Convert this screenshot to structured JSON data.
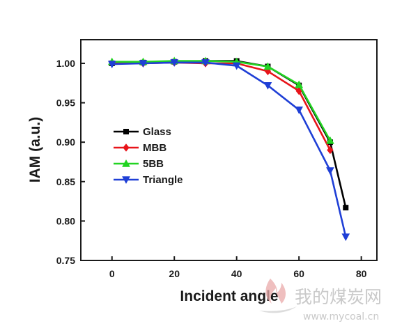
{
  "chart_data": {
    "type": "line",
    "title": "",
    "xlabel": "Incident angle",
    "ylabel": "IAM (a.u.)",
    "xlim": [
      -10,
      85
    ],
    "ylim": [
      0.75,
      1.03
    ],
    "x_ticks": [
      0,
      20,
      40,
      60,
      80
    ],
    "y_ticks": [
      0.75,
      0.8,
      0.85,
      0.9,
      0.95,
      1.0
    ],
    "x_tick_labels": [
      "0",
      "20",
      "40",
      "60",
      "80"
    ],
    "y_tick_labels": [
      "0.75",
      "0.80",
      "0.85",
      "0.90",
      "0.95",
      "1.00"
    ],
    "grid": false,
    "legend_position": "center-left",
    "series": [
      {
        "name": "Glass",
        "color": "#000000",
        "marker": "square",
        "x": [
          0,
          10,
          20,
          30,
          40,
          50,
          60,
          70,
          75
        ],
        "y": [
          1.0,
          1.001,
          1.002,
          1.003,
          1.003,
          0.996,
          0.972,
          0.9,
          0.817
        ]
      },
      {
        "name": "MBB",
        "color": "#e8141a",
        "marker": "diamond",
        "x": [
          0,
          10,
          20,
          30,
          40,
          50,
          60,
          70
        ],
        "y": [
          1.0,
          1.0,
          1.001,
          1.0,
          1.0,
          0.99,
          0.965,
          0.89
        ]
      },
      {
        "name": "5BB",
        "color": "#22d422",
        "marker": "triangle-up",
        "x": [
          0,
          10,
          20,
          30,
          40,
          50,
          60,
          70
        ],
        "y": [
          1.002,
          1.002,
          1.003,
          1.003,
          1.002,
          0.996,
          0.973,
          0.902
        ]
      },
      {
        "name": "Triangle",
        "color": "#1f3fd6",
        "marker": "triangle-down",
        "x": [
          0,
          10,
          20,
          30,
          40,
          50,
          60,
          70,
          75
        ],
        "y": [
          0.999,
          1.0,
          1.001,
          1.001,
          0.997,
          0.972,
          0.941,
          0.864,
          0.78
        ]
      }
    ]
  },
  "watermark": {
    "text": "我的煤炭网",
    "url": "www.mycoal.cn",
    "color": "#c9c9c9",
    "logo_color": "#e9a9a9"
  }
}
